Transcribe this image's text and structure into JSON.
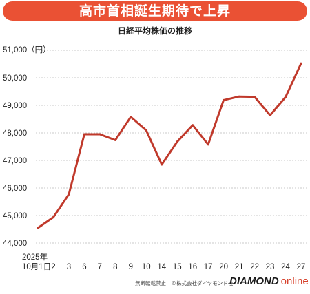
{
  "header": {
    "title": "高市首相誕生期待で上昇",
    "subtitle": "日経平均株価の推移"
  },
  "footer": {
    "notice": "無断転載禁止　©株式会社ダイヤモンド社",
    "logo_main": "DIAMOND",
    "logo_sub": "online"
  },
  "colors": {
    "banner": "#ea5134",
    "line": "#c0392b",
    "grid": "#b8b8b8"
  },
  "chart_data": {
    "type": "line",
    "title": "日経平均株価の推移",
    "y_unit_label": "51,000（円）",
    "x_year_label": "2025年",
    "ylim": [
      44000,
      51000
    ],
    "y_ticks": [
      {
        "value": 44000,
        "label": "44,000"
      },
      {
        "value": 45000,
        "label": "45,000"
      },
      {
        "value": 46000,
        "label": "46,000"
      },
      {
        "value": 47000,
        "label": "47,000"
      },
      {
        "value": 48000,
        "label": "48,000"
      },
      {
        "value": 49000,
        "label": "49,000"
      },
      {
        "value": 50000,
        "label": "50,000"
      }
    ],
    "grid": "horizontal-dashed",
    "categories": [
      "10月1日",
      "2",
      "3",
      "6",
      "7",
      "8",
      "9",
      "10",
      "14",
      "15",
      "16",
      "17",
      "20",
      "21",
      "22",
      "23",
      "24",
      "27"
    ],
    "series": [
      {
        "values": [
          44550,
          44940,
          45770,
          47950,
          47950,
          47740,
          48580,
          48090,
          46850,
          47680,
          48280,
          47580,
          49190,
          49320,
          49310,
          48640,
          49300,
          50520
        ]
      }
    ]
  }
}
